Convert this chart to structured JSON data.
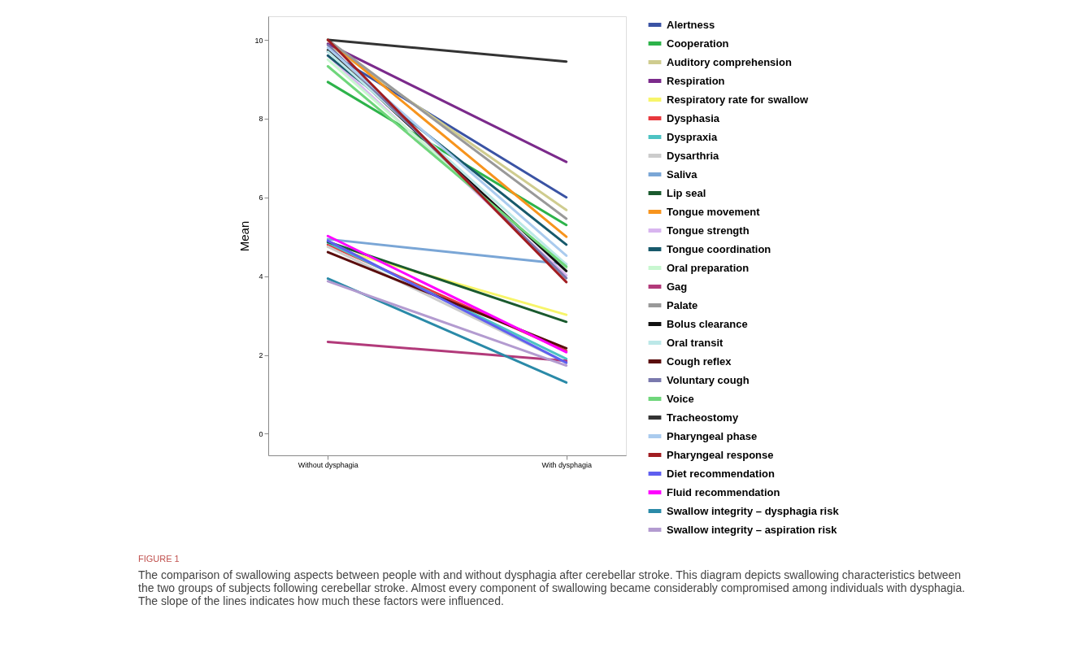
{
  "chart_data": {
    "type": "line",
    "ylabel": "Mean",
    "categories": [
      "Without dysphagia",
      "With dysphagia"
    ],
    "series": [
      {
        "name": "Alertness",
        "color": "#3a53a4",
        "values": [
          9.7,
          6.0
        ]
      },
      {
        "name": "Cooperation",
        "color": "#2db34a",
        "values": [
          8.93,
          5.3
        ]
      },
      {
        "name": "Auditory comprehension",
        "color": "#cfcc8f",
        "values": [
          9.9,
          5.68
        ]
      },
      {
        "name": "Respiration",
        "color": "#7b2a8b",
        "values": [
          9.9,
          6.9
        ]
      },
      {
        "name": "Respiratory rate for swallow",
        "color": "#f7f56a",
        "values": [
          4.75,
          3.02
        ]
      },
      {
        "name": "Dysphasia",
        "color": "#e8383d",
        "values": [
          4.8,
          2.1
        ]
      },
      {
        "name": "Dyspraxia",
        "color": "#4dc3c3",
        "values": [
          4.85,
          1.9
        ]
      },
      {
        "name": "Dysarthria",
        "color": "#cccccc",
        "values": [
          4.75,
          1.8
        ]
      },
      {
        "name": "Saliva",
        "color": "#7aa6d6",
        "values": [
          4.94,
          4.3
        ]
      },
      {
        "name": "Lip seal",
        "color": "#1a5a2e",
        "values": [
          4.87,
          2.84
        ]
      },
      {
        "name": "Tongue movement",
        "color": "#f7941d",
        "values": [
          10.0,
          5.0
        ]
      },
      {
        "name": "Tongue strength",
        "color": "#d8b5ef",
        "values": [
          9.6,
          4.02
        ]
      },
      {
        "name": "Tongue coordination",
        "color": "#17596b",
        "values": [
          9.6,
          4.8
        ]
      },
      {
        "name": "Oral preparation",
        "color": "#c8f7d0",
        "values": [
          9.5,
          4.2
        ]
      },
      {
        "name": "Gag",
        "color": "#b23a7a",
        "values": [
          2.33,
          1.85
        ]
      },
      {
        "name": "Palate",
        "color": "#999999",
        "values": [
          10.0,
          5.46
        ]
      },
      {
        "name": "Bolus clearance",
        "color": "#111111",
        "values": [
          9.74,
          4.13
        ]
      },
      {
        "name": "Oral transit",
        "color": "#bce8e8",
        "values": [
          9.7,
          4.3
        ]
      },
      {
        "name": "Cough reflex",
        "color": "#5a0d0d",
        "values": [
          4.61,
          2.17
        ]
      },
      {
        "name": "Voluntary cough",
        "color": "#7a79ad",
        "values": [
          9.87,
          3.95
        ]
      },
      {
        "name": "Voice",
        "color": "#6fd67b",
        "values": [
          9.33,
          4.24
        ]
      },
      {
        "name": "Tracheostomy",
        "color": "#333333",
        "values": [
          10.0,
          9.45
        ]
      },
      {
        "name": "Pharyngeal phase",
        "color": "#aacbee",
        "values": [
          9.8,
          4.52
        ]
      },
      {
        "name": "Pharyngeal response",
        "color": "#a11d21",
        "values": [
          10.0,
          3.85
        ]
      },
      {
        "name": "Diet recommendation",
        "color": "#5f5ff0",
        "values": [
          4.9,
          1.8
        ]
      },
      {
        "name": "Fluid recommendation",
        "color": "#ff00ff",
        "values": [
          5.02,
          2.07
        ]
      },
      {
        "name": "Swallow integrity – dysphagia risk",
        "color": "#2a8aa8",
        "values": [
          3.94,
          1.3
        ]
      },
      {
        "name": "Swallow integrity – aspiration risk",
        "color": "#b39bd0",
        "values": [
          3.87,
          1.73
        ]
      }
    ],
    "ylim": [
      -0.55,
      10.6
    ],
    "yticks": [
      0,
      2,
      4,
      6,
      8,
      10
    ],
    "grid": false,
    "legend": "right",
    "marker": "none",
    "line_style": "solid",
    "annotations": [
      "FIGURE 1",
      "The comparison of swallowing aspects between people with and without dysphagia after cerebellar stroke. This diagram depicts swallowing characteristics between the two groups of subjects following cerebellar stroke. Almost every component of swallowing became considerably compromised among individuals with dysphagia. The slope of the lines indicates how much these factors were influenced."
    ]
  }
}
